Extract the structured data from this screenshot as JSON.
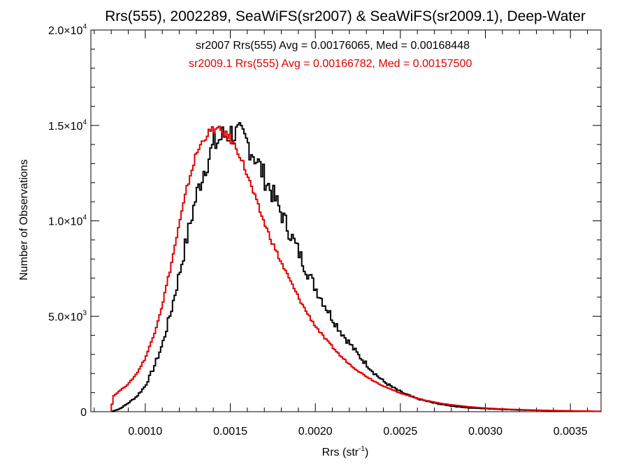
{
  "chart_data": {
    "type": "histogram-step",
    "title": "Rrs(555), 2002289, SeaWiFS(sr2007) & SeaWiFS(sr2009.1), Deep-Water",
    "xlabel_main": "Rrs (str",
    "xlabel_sup": "-1",
    "xlabel_tail": ")",
    "ylabel": "Number of Observations",
    "xlim": [
      0.00068,
      0.00368
    ],
    "ylim": [
      0,
      20000
    ],
    "x_ticks": [
      {
        "value": 0.001,
        "label": "0.0010"
      },
      {
        "value": 0.0015,
        "label": "0.0015"
      },
      {
        "value": 0.002,
        "label": "0.0020"
      },
      {
        "value": 0.0025,
        "label": "0.0025"
      },
      {
        "value": 0.003,
        "label": "0.0030"
      },
      {
        "value": 0.0035,
        "label": "0.0035"
      }
    ],
    "y_ticks": [
      {
        "value": 0,
        "mant": "0",
        "exp": ""
      },
      {
        "value": 5000,
        "mant": "5.0×10",
        "exp": "3"
      },
      {
        "value": 10000,
        "mant": "1.0×10",
        "exp": "4"
      },
      {
        "value": 15000,
        "mant": "1.5×10",
        "exp": "4"
      },
      {
        "value": 20000,
        "mant": "2.0×10",
        "exp": "4"
      }
    ],
    "series": [
      {
        "name": "sr2007",
        "color": "#000000",
        "annotation": "sr2007 Rrs(555) Avg = 0.00176065, Med = 0.00168448",
        "points": [
          [
            0.0008,
            0
          ],
          [
            0.00085,
            150
          ],
          [
            0.0009,
            450
          ],
          [
            0.00095,
            800
          ],
          [
            0.001,
            1350
          ],
          [
            0.00105,
            2300
          ],
          [
            0.0011,
            3500
          ],
          [
            0.00115,
            5200
          ],
          [
            0.0012,
            7200
          ],
          [
            0.00125,
            9300
          ],
          [
            0.0013,
            11300
          ],
          [
            0.00135,
            12800
          ],
          [
            0.0014,
            13900
          ],
          [
            0.00145,
            14400
          ],
          [
            0.0015,
            14600
          ],
          [
            0.00155,
            14500
          ],
          [
            0.0016,
            14100
          ],
          [
            0.00165,
            13300
          ],
          [
            0.0017,
            12300
          ],
          [
            0.00175,
            11400
          ],
          [
            0.0018,
            10400
          ],
          [
            0.00185,
            9400
          ],
          [
            0.0019,
            8400
          ],
          [
            0.00195,
            7400
          ],
          [
            0.002,
            6500
          ],
          [
            0.00205,
            5700
          ],
          [
            0.0021,
            4900
          ],
          [
            0.00215,
            4200
          ],
          [
            0.0022,
            3600
          ],
          [
            0.00225,
            3000
          ],
          [
            0.0023,
            2500
          ],
          [
            0.00235,
            2000
          ],
          [
            0.0024,
            1600
          ],
          [
            0.00245,
            1300
          ],
          [
            0.0025,
            1050
          ],
          [
            0.00255,
            850
          ],
          [
            0.0026,
            680
          ],
          [
            0.00265,
            560
          ],
          [
            0.0027,
            450
          ],
          [
            0.00275,
            370
          ],
          [
            0.0028,
            300
          ],
          [
            0.00285,
            250
          ],
          [
            0.0029,
            200
          ],
          [
            0.003,
            160
          ],
          [
            0.0031,
            120
          ],
          [
            0.0032,
            90
          ],
          [
            0.0033,
            70
          ],
          [
            0.0034,
            50
          ],
          [
            0.0035,
            40
          ],
          [
            0.0036,
            25
          ],
          [
            0.00368,
            15
          ]
        ]
      },
      {
        "name": "sr2009.1",
        "color": "#e00000",
        "annotation": "sr2009.1 Rrs(555) Avg = 0.00166782, Med = 0.00157500",
        "points": [
          [
            0.0008,
            0
          ],
          [
            0.00081,
            800
          ],
          [
            0.00085,
            1100
          ],
          [
            0.0009,
            1450
          ],
          [
            0.00095,
            2000
          ],
          [
            0.001,
            2800
          ],
          [
            0.00105,
            4000
          ],
          [
            0.0011,
            5600
          ],
          [
            0.00115,
            7600
          ],
          [
            0.0012,
            9800
          ],
          [
            0.00125,
            11900
          ],
          [
            0.0013,
            13500
          ],
          [
            0.00135,
            14400
          ],
          [
            0.0014,
            14800
          ],
          [
            0.00145,
            14700
          ],
          [
            0.0015,
            14300
          ],
          [
            0.00155,
            13600
          ],
          [
            0.0016,
            12400
          ],
          [
            0.00165,
            11100
          ],
          [
            0.0017,
            9900
          ],
          [
            0.00175,
            8800
          ],
          [
            0.0018,
            7800
          ],
          [
            0.00185,
            6900
          ],
          [
            0.0019,
            6000
          ],
          [
            0.00195,
            5200
          ],
          [
            0.002,
            4500
          ],
          [
            0.00205,
            3900
          ],
          [
            0.0021,
            3400
          ],
          [
            0.00215,
            2900
          ],
          [
            0.0022,
            2500
          ],
          [
            0.00225,
            2150
          ],
          [
            0.0023,
            1850
          ],
          [
            0.00235,
            1580
          ],
          [
            0.0024,
            1350
          ],
          [
            0.00245,
            1150
          ],
          [
            0.0025,
            980
          ],
          [
            0.00255,
            830
          ],
          [
            0.0026,
            700
          ],
          [
            0.00265,
            590
          ],
          [
            0.0027,
            500
          ],
          [
            0.00275,
            420
          ],
          [
            0.0028,
            360
          ],
          [
            0.00285,
            310
          ],
          [
            0.0029,
            260
          ],
          [
            0.003,
            190
          ],
          [
            0.0031,
            140
          ],
          [
            0.0032,
            110
          ],
          [
            0.0033,
            80
          ],
          [
            0.0034,
            60
          ],
          [
            0.0035,
            45
          ],
          [
            0.0036,
            30
          ],
          [
            0.00368,
            20
          ]
        ]
      }
    ]
  }
}
